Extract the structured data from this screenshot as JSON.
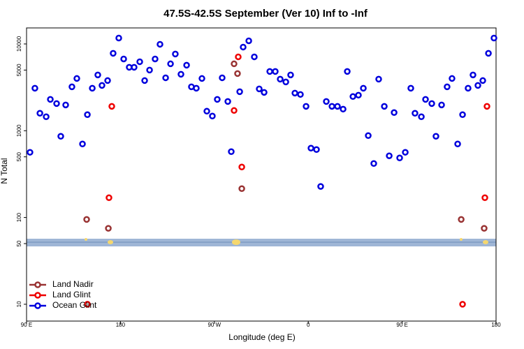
{
  "chart_data": {
    "type": "scatter",
    "title": "47.5S-42.5S September (Ver 10)   Inf to -Inf",
    "x_label": "Longitude (deg E)",
    "y_label": "N Total",
    "log_y": true,
    "legend": "bottom-left",
    "xlim": [
      90,
      540
    ],
    "ylim": [
      6.4,
      15300
    ],
    "xticks": [
      {
        "value": 90,
        "label": "90 E"
      },
      180,
      {
        "value": 270,
        "label": "90 W"
      },
      {
        "value": 360,
        "label": "0"
      },
      {
        "value": 450,
        "label": "90 E"
      },
      {
        "value": 540,
        "label": "180"
      }
    ],
    "yticks": [
      10,
      50,
      100,
      500,
      1000,
      5000,
      10000
    ],
    "series": [
      {
        "name": "Land Nadir",
        "color": "#993333",
        "x": [
          147.6,
          168.4,
          288.9,
          292.2,
          296.3,
          506.6,
          528.6
        ],
        "values": [
          95,
          75,
          5902,
          4560,
          215,
          95,
          75
        ]
      },
      {
        "name": "Land Glint",
        "color": "#ee0000",
        "x": [
          148.3,
          169.0,
          171.7,
          288.9,
          292.9,
          296.3,
          507.9,
          529.3,
          531.3
        ],
        "values": [
          10,
          169,
          1910,
          1710,
          7101,
          382,
          10,
          169,
          1910
        ]
      },
      {
        "name": "Ocean Glint",
        "color": "#0000dd",
        "x": [
          93.3,
          98.0,
          102.8,
          108.8,
          112.8,
          118.8,
          122.8,
          127.5,
          133.5,
          138.2,
          143.6,
          148.3,
          153.0,
          158.3,
          162.3,
          167.7,
          173.0,
          178.4,
          183.1,
          188.4,
          193.1,
          198.5,
          203.2,
          207.9,
          213.2,
          217.9,
          223.3,
          228.0,
          232.6,
          238.0,
          243.4,
          248.0,
          252.7,
          258.1,
          262.8,
          268.1,
          272.8,
          277.5,
          282.9,
          286.2,
          294.3,
          297.6,
          303.0,
          308.3,
          313.0,
          317.7,
          323.1,
          328.4,
          333.1,
          338.5,
          343.1,
          347.2,
          352.5,
          357.9,
          362.6,
          367.9,
          371.9,
          377.3,
          382.7,
          388.0,
          393.4,
          397.4,
          402.8,
          408.1,
          412.8,
          417.5,
          422.8,
          427.5,
          432.9,
          437.6,
          442.3,
          447.6,
          453.0,
          458.3,
          462.3,
          468.4,
          472.4,
          478.4,
          482.4,
          487.8,
          493.1,
          497.8,
          503.2,
          507.9,
          513.2,
          517.9,
          522.6,
          527.3,
          532.7,
          538.0
        ],
        "values": [
          564,
          3090,
          1589,
          1449,
          2297,
          2057,
          863,
          1982,
          3206,
          4000,
          704,
          1531,
          3090,
          4395,
          3327,
          3784,
          7798,
          11700,
          6714,
          5383,
          5383,
          6238,
          3784,
          5000,
          6714,
          9910,
          4074,
          5902,
          7656,
          4477,
          5689,
          3206,
          3090,
          4000,
          1679,
          1475,
          2297,
          4074,
          2173,
          574,
          2818,
          9204,
          10870,
          7101,
          3034,
          2766,
          4819,
          4819,
          3929,
          3648,
          4395,
          2716,
          2618,
          1910,
          630,
          607,
          228,
          2173,
          1910,
          1910,
          1774,
          4819,
          2477,
          2570,
          3090,
          879,
          419,
          3929,
          1910,
          514,
          1618,
          486,
          564,
          3090,
          1589,
          1449,
          2297,
          2057,
          863,
          1982,
          3206,
          4000,
          704,
          1531,
          3090,
          4395,
          3327,
          3784,
          7798,
          11700
        ]
      }
    ]
  }
}
